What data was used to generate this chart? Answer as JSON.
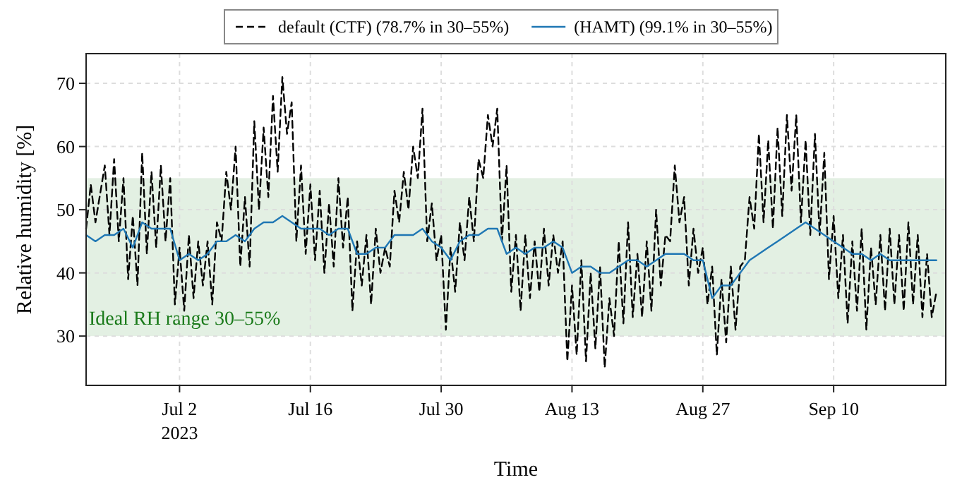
{
  "chart_data": {
    "type": "line",
    "xlabel": "Time",
    "ylabel": "Relative humidity [%]",
    "xlim": [
      "2023-06-22",
      "2023-09-22"
    ],
    "ylim": [
      22.2,
      74.7
    ],
    "xticks": [
      {
        "value": "2023-07-02",
        "label": "Jul 2\n2023"
      },
      {
        "value": "2023-07-16",
        "label": "Jul 16"
      },
      {
        "value": "2023-07-30",
        "label": "Jul 30"
      },
      {
        "value": "2023-08-13",
        "label": "Aug 13"
      },
      {
        "value": "2023-08-27",
        "label": "Aug 27"
      },
      {
        "value": "2023-09-10",
        "label": "Sep 10"
      }
    ],
    "yticks": [
      30,
      40,
      50,
      60,
      70
    ],
    "grid": true,
    "legend": "top",
    "bands": [
      {
        "axis": "y",
        "from": 30,
        "to": 55,
        "label": "Ideal RH range 30–55%",
        "color": "#e3f0e3"
      }
    ],
    "series": [
      {
        "name": "default (CTF) (78.7% in 30–55%)",
        "color": "#000000",
        "line_style": "dashed",
        "x": [
          "2023-06-22",
          "2023-06-22T12:00",
          "2023-06-23",
          "2023-06-24",
          "2023-06-24T12:00",
          "2023-06-25",
          "2023-06-25T12:00",
          "2023-06-26",
          "2023-06-26T12:00",
          "2023-06-27",
          "2023-06-27T12:00",
          "2023-06-28",
          "2023-06-28T12:00",
          "2023-06-29",
          "2023-06-29T12:00",
          "2023-06-30",
          "2023-06-30T12:00",
          "2023-07-01",
          "2023-07-01T12:00",
          "2023-07-02",
          "2023-07-02T12:00",
          "2023-07-03",
          "2023-07-03T12:00",
          "2023-07-04",
          "2023-07-04T12:00",
          "2023-07-05",
          "2023-07-05T12:00",
          "2023-07-06",
          "2023-07-06T12:00",
          "2023-07-07",
          "2023-07-07T12:00",
          "2023-07-08",
          "2023-07-08T12:00",
          "2023-07-09",
          "2023-07-09T12:00",
          "2023-07-10",
          "2023-07-10T12:00",
          "2023-07-11",
          "2023-07-11T12:00",
          "2023-07-12",
          "2023-07-12T12:00",
          "2023-07-13",
          "2023-07-13T12:00",
          "2023-07-14",
          "2023-07-14T12:00",
          "2023-07-15",
          "2023-07-15T12:00",
          "2023-07-16",
          "2023-07-16T12:00",
          "2023-07-17",
          "2023-07-17T12:00",
          "2023-07-18",
          "2023-07-18T12:00",
          "2023-07-19",
          "2023-07-19T12:00",
          "2023-07-20",
          "2023-07-20T12:00",
          "2023-07-21",
          "2023-07-21T12:00",
          "2023-07-22",
          "2023-07-22T12:00",
          "2023-07-23",
          "2023-07-23T12:00",
          "2023-07-24",
          "2023-07-24T12:00",
          "2023-07-25",
          "2023-07-25T12:00",
          "2023-07-26",
          "2023-07-26T12:00",
          "2023-07-27",
          "2023-07-27T12:00",
          "2023-07-28",
          "2023-07-28T12:00",
          "2023-07-29",
          "2023-07-29T12:00",
          "2023-07-30",
          "2023-07-30T12:00",
          "2023-07-31",
          "2023-07-31T12:00",
          "2023-08-01",
          "2023-08-01T12:00",
          "2023-08-02",
          "2023-08-02T12:00",
          "2023-08-03",
          "2023-08-03T12:00",
          "2023-08-04",
          "2023-08-04T12:00",
          "2023-08-05",
          "2023-08-05T12:00",
          "2023-08-06",
          "2023-08-06T12:00",
          "2023-08-07",
          "2023-08-07T12:00",
          "2023-08-08",
          "2023-08-08T12:00",
          "2023-08-09",
          "2023-08-09T12:00",
          "2023-08-10",
          "2023-08-10T12:00",
          "2023-08-11",
          "2023-08-11T12:00",
          "2023-08-12",
          "2023-08-12T12:00",
          "2023-08-13",
          "2023-08-13T12:00",
          "2023-08-14",
          "2023-08-14T12:00",
          "2023-08-15",
          "2023-08-15T12:00",
          "2023-08-16",
          "2023-08-16T12:00",
          "2023-08-17",
          "2023-08-17T12:00",
          "2023-08-18",
          "2023-08-18T12:00",
          "2023-08-19",
          "2023-08-19T12:00",
          "2023-08-20",
          "2023-08-20T12:00",
          "2023-08-21",
          "2023-08-21T12:00",
          "2023-08-22",
          "2023-08-22T12:00",
          "2023-08-23",
          "2023-08-23T12:00",
          "2023-08-24",
          "2023-08-24T12:00",
          "2023-08-25",
          "2023-08-25T12:00",
          "2023-08-26",
          "2023-08-26T12:00",
          "2023-08-27",
          "2023-08-27T12:00",
          "2023-08-28",
          "2023-08-28T12:00",
          "2023-08-29",
          "2023-08-29T12:00",
          "2023-08-30",
          "2023-08-30T12:00",
          "2023-08-31",
          "2023-08-31T12:00",
          "2023-09-01",
          "2023-09-01T12:00",
          "2023-09-02",
          "2023-09-02T12:00",
          "2023-09-03",
          "2023-09-03T12:00",
          "2023-09-04",
          "2023-09-04T12:00",
          "2023-09-05",
          "2023-09-05T12:00",
          "2023-09-06",
          "2023-09-06T12:00",
          "2023-09-07",
          "2023-09-07T12:00",
          "2023-09-08",
          "2023-09-08T12:00",
          "2023-09-09",
          "2023-09-09T12:00",
          "2023-09-10",
          "2023-09-10T12:00",
          "2023-09-11",
          "2023-09-11T12:00",
          "2023-09-12",
          "2023-09-12T12:00",
          "2023-09-13",
          "2023-09-13T12:00",
          "2023-09-14",
          "2023-09-14T12:00",
          "2023-09-15",
          "2023-09-15T12:00",
          "2023-09-16",
          "2023-09-16T12:00",
          "2023-09-17",
          "2023-09-17T12:00",
          "2023-09-18",
          "2023-09-18T12:00",
          "2023-09-19",
          "2023-09-19T12:00",
          "2023-09-20",
          "2023-09-20T12:00",
          "2023-09-21"
        ],
        "values": [
          47,
          54,
          48,
          57,
          46,
          58,
          45,
          55,
          39,
          49,
          38,
          59,
          43,
          56,
          44,
          57,
          45,
          55,
          35,
          44,
          34,
          46,
          36,
          45,
          38,
          45,
          35,
          48,
          45,
          56,
          50,
          60,
          41,
          52,
          41,
          64,
          50,
          63,
          52,
          68,
          56,
          71,
          62,
          67,
          45,
          57,
          43,
          54,
          42,
          53,
          40,
          51,
          41,
          55,
          44,
          52,
          34,
          45,
          38,
          46,
          35,
          47,
          40,
          44,
          41,
          53,
          48,
          56,
          50,
          60,
          55,
          66,
          45,
          51,
          42,
          46,
          31,
          44,
          37,
          48,
          42,
          52,
          45,
          58,
          55,
          65,
          60,
          66,
          45,
          57,
          37,
          46,
          34,
          46,
          36,
          45,
          37,
          47,
          38,
          46,
          40,
          45,
          26,
          38,
          27,
          42,
          26,
          40,
          28,
          41,
          25,
          36,
          30,
          45,
          32,
          48,
          33,
          43,
          33,
          45,
          34,
          50,
          38,
          46,
          45,
          57,
          48,
          52,
          38,
          47,
          40,
          44,
          35,
          41,
          27,
          39,
          29,
          41,
          31,
          41,
          42,
          52,
          47,
          62,
          48,
          61,
          47,
          63,
          49,
          65,
          53,
          65,
          48,
          61,
          46,
          62,
          46,
          59,
          39,
          49,
          36,
          46,
          32,
          45,
          34,
          47,
          31,
          44,
          35,
          46,
          34,
          47,
          35,
          46,
          34,
          48,
          35,
          46,
          33,
          43,
          33,
          37
        ]
      },
      {
        "name": "(HAMT) (99.1% in 30–55%)",
        "color": "#1f77b4",
        "line_style": "solid",
        "x": [
          "2023-06-22",
          "2023-06-23",
          "2023-06-24",
          "2023-06-25",
          "2023-06-26",
          "2023-06-27",
          "2023-06-28",
          "2023-06-29",
          "2023-06-30",
          "2023-07-01",
          "2023-07-02",
          "2023-07-03",
          "2023-07-04",
          "2023-07-05",
          "2023-07-06",
          "2023-07-07",
          "2023-07-08",
          "2023-07-09",
          "2023-07-10",
          "2023-07-11",
          "2023-07-12",
          "2023-07-13",
          "2023-07-14",
          "2023-07-15",
          "2023-07-16",
          "2023-07-17",
          "2023-07-18",
          "2023-07-19",
          "2023-07-20",
          "2023-07-21",
          "2023-07-22",
          "2023-07-23",
          "2023-07-24",
          "2023-07-25",
          "2023-07-26",
          "2023-07-27",
          "2023-07-28",
          "2023-07-29",
          "2023-07-30",
          "2023-07-31",
          "2023-08-01",
          "2023-08-02",
          "2023-08-03",
          "2023-08-04",
          "2023-08-05",
          "2023-08-06",
          "2023-08-07",
          "2023-08-08",
          "2023-08-09",
          "2023-08-10",
          "2023-08-11",
          "2023-08-12",
          "2023-08-13",
          "2023-08-14",
          "2023-08-15",
          "2023-08-16",
          "2023-08-17",
          "2023-08-18",
          "2023-08-19",
          "2023-08-20",
          "2023-08-21",
          "2023-08-22",
          "2023-08-23",
          "2023-08-24",
          "2023-08-25",
          "2023-08-26",
          "2023-08-27",
          "2023-08-28",
          "2023-08-29",
          "2023-08-30",
          "2023-08-31",
          "2023-09-01",
          "2023-09-02",
          "2023-09-03",
          "2023-09-04",
          "2023-09-05",
          "2023-09-06",
          "2023-09-07",
          "2023-09-08",
          "2023-09-09",
          "2023-09-10",
          "2023-09-11",
          "2023-09-12",
          "2023-09-13",
          "2023-09-14",
          "2023-09-15",
          "2023-09-16",
          "2023-09-17",
          "2023-09-18",
          "2023-09-19",
          "2023-09-20",
          "2023-09-21"
        ],
        "values": [
          46,
          45,
          46,
          46,
          47,
          44,
          48,
          47,
          47,
          47,
          42,
          43,
          42,
          43,
          45,
          45,
          46,
          45,
          47,
          48,
          48,
          49,
          48,
          47,
          47,
          47,
          46,
          47,
          47,
          43,
          43,
          44,
          44,
          46,
          46,
          46,
          47,
          45,
          44,
          42,
          45,
          46,
          46,
          47,
          47,
          43,
          44,
          43,
          44,
          44,
          45,
          44,
          40,
          41,
          41,
          40,
          40,
          41,
          42,
          42,
          41,
          42,
          43,
          43,
          43,
          42,
          42,
          36,
          38,
          38,
          40,
          42,
          43,
          44,
          45,
          46,
          47,
          48,
          47,
          46,
          45,
          44,
          43,
          43,
          42,
          43,
          42,
          42,
          42,
          42,
          42,
          42
        ]
      }
    ]
  }
}
